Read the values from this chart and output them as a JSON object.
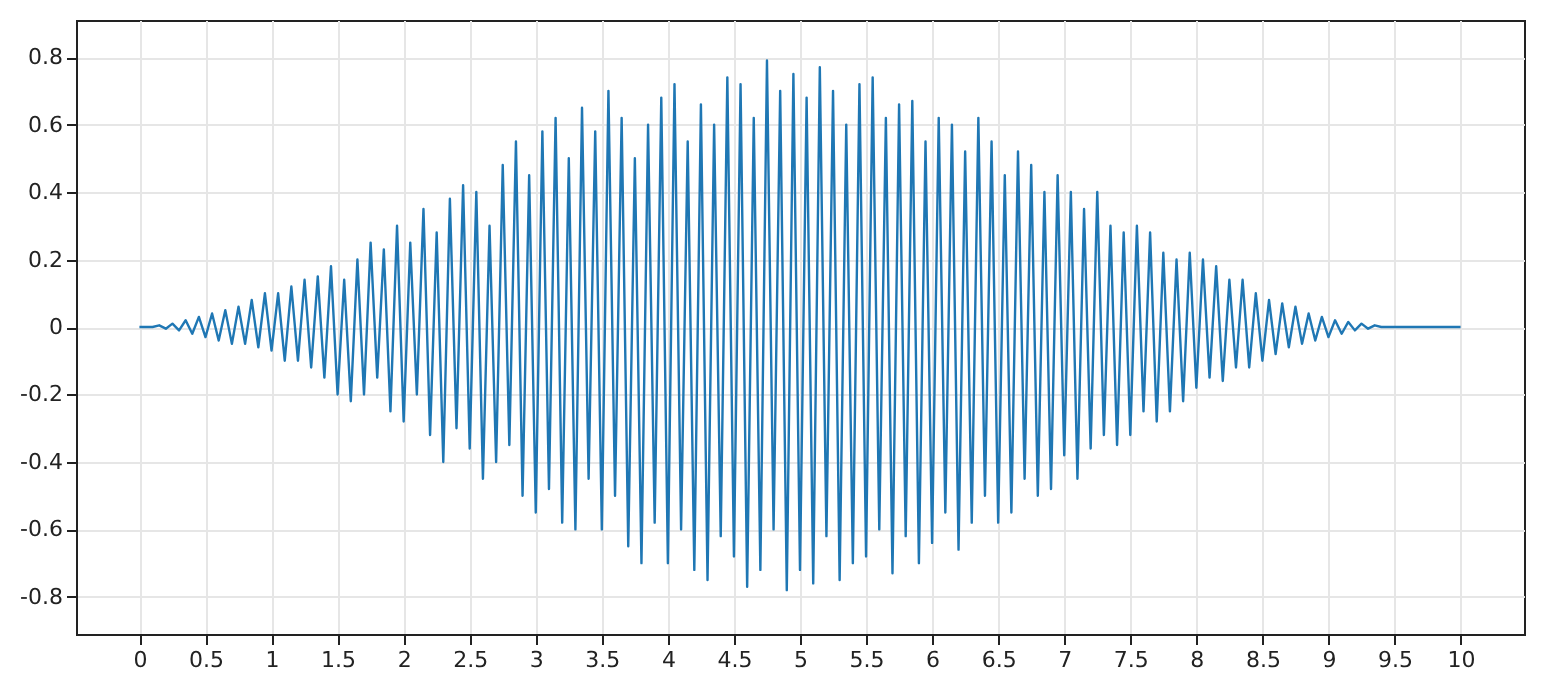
{
  "chart_data": {
    "type": "line",
    "x": [
      0,
      0.05,
      0.1,
      0.15,
      0.2,
      0.25,
      0.3,
      0.35,
      0.4,
      0.45,
      0.5,
      0.55,
      0.6,
      0.65,
      0.7,
      0.75,
      0.8,
      0.85,
      0.9,
      0.95,
      1,
      1.05,
      1.1,
      1.15,
      1.2,
      1.25,
      1.3,
      1.35,
      1.4,
      1.45,
      1.5,
      1.55,
      1.6,
      1.65,
      1.7,
      1.75,
      1.8,
      1.85,
      1.9,
      1.95,
      2,
      2.05,
      2.1,
      2.15,
      2.2,
      2.25,
      2.3,
      2.35,
      2.4,
      2.45,
      2.5,
      2.55,
      2.6,
      2.65,
      2.7,
      2.75,
      2.8,
      2.85,
      2.9,
      2.95,
      3,
      3.05,
      3.1,
      3.15,
      3.2,
      3.25,
      3.3,
      3.35,
      3.4,
      3.45,
      3.5,
      3.55,
      3.6,
      3.65,
      3.7,
      3.75,
      3.8,
      3.85,
      3.9,
      3.95,
      4,
      4.05,
      4.1,
      4.15,
      4.2,
      4.25,
      4.3,
      4.35,
      4.4,
      4.45,
      4.5,
      4.55,
      4.6,
      4.65,
      4.7,
      4.75,
      4.8,
      4.85,
      4.9,
      4.95,
      5,
      5.05,
      5.1,
      5.15,
      5.2,
      5.25,
      5.3,
      5.35,
      5.4,
      5.45,
      5.5,
      5.55,
      5.6,
      5.65,
      5.7,
      5.75,
      5.8,
      5.85,
      5.9,
      5.95,
      6,
      6.05,
      6.1,
      6.15,
      6.2,
      6.25,
      6.3,
      6.35,
      6.4,
      6.45,
      6.5,
      6.55,
      6.6,
      6.65,
      6.7,
      6.75,
      6.8,
      6.85,
      6.9,
      6.95,
      7,
      7.05,
      7.1,
      7.15,
      7.2,
      7.25,
      7.3,
      7.35,
      7.4,
      7.45,
      7.5,
      7.55,
      7.6,
      7.65,
      7.7,
      7.75,
      7.8,
      7.85,
      7.9,
      7.95,
      8,
      8.05,
      8.1,
      8.15,
      8.2,
      8.25,
      8.3,
      8.35,
      8.4,
      8.45,
      8.5,
      8.55,
      8.6,
      8.65,
      8.7,
      8.75,
      8.8,
      8.85,
      8.9,
      8.95,
      9,
      9.05,
      9.1,
      9.15,
      9.2,
      9.25,
      9.3,
      9.35,
      9.4,
      9.45,
      9.5,
      9.55,
      9.6,
      9.65,
      9.7,
      9.75,
      9.8,
      9.85,
      9.9,
      9.95,
      10
    ],
    "series": [
      {
        "color": "#1f77b4",
        "values": [
          0,
          0,
          0,
          0.005,
          -0.005,
          0.01,
          -0.01,
          0.02,
          -0.02,
          0.03,
          -0.03,
          0.04,
          -0.04,
          0.05,
          -0.05,
          0.06,
          -0.05,
          0.08,
          -0.06,
          0.1,
          -0.07,
          0.1,
          -0.1,
          0.12,
          -0.1,
          0.14,
          -0.12,
          0.15,
          -0.15,
          0.18,
          -0.2,
          0.14,
          -0.22,
          0.2,
          -0.2,
          0.25,
          -0.15,
          0.23,
          -0.25,
          0.3,
          -0.28,
          0.25,
          -0.2,
          0.35,
          -0.32,
          0.28,
          -0.4,
          0.38,
          -0.3,
          0.42,
          -0.36,
          0.4,
          -0.45,
          0.3,
          -0.4,
          0.48,
          -0.35,
          0.55,
          -0.5,
          0.45,
          -0.55,
          0.58,
          -0.48,
          0.62,
          -0.58,
          0.5,
          -0.6,
          0.65,
          -0.45,
          0.58,
          -0.6,
          0.7,
          -0.5,
          0.62,
          -0.65,
          0.5,
          -0.7,
          0.6,
          -0.58,
          0.68,
          -0.7,
          0.72,
          -0.6,
          0.55,
          -0.72,
          0.66,
          -0.75,
          0.6,
          -0.62,
          0.74,
          -0.68,
          0.72,
          -0.77,
          0.62,
          -0.72,
          0.79,
          -0.6,
          0.7,
          -0.78,
          0.75,
          -0.72,
          0.68,
          -0.76,
          0.77,
          -0.62,
          0.7,
          -0.75,
          0.6,
          -0.7,
          0.72,
          -0.68,
          0.74,
          -0.6,
          0.62,
          -0.73,
          0.66,
          -0.62,
          0.67,
          -0.7,
          0.55,
          -0.64,
          0.62,
          -0.55,
          0.6,
          -0.66,
          0.52,
          -0.58,
          0.62,
          -0.5,
          0.55,
          -0.58,
          0.45,
          -0.55,
          0.52,
          -0.45,
          0.48,
          -0.5,
          0.4,
          -0.48,
          0.45,
          -0.38,
          0.4,
          -0.45,
          0.35,
          -0.36,
          0.4,
          -0.32,
          0.3,
          -0.35,
          0.28,
          -0.32,
          0.3,
          -0.25,
          0.28,
          -0.28,
          0.22,
          -0.25,
          0.2,
          -0.22,
          0.22,
          -0.18,
          0.2,
          -0.15,
          0.18,
          -0.16,
          0.14,
          -0.12,
          0.14,
          -0.12,
          0.1,
          -0.1,
          0.08,
          -0.08,
          0.07,
          -0.06,
          0.06,
          -0.05,
          0.04,
          -0.04,
          0.03,
          -0.03,
          0.02,
          -0.02,
          0.015,
          -0.01,
          0.01,
          -0.005,
          0.005,
          0,
          0,
          0,
          0,
          0,
          0,
          0,
          0,
          0,
          0,
          0,
          0,
          0
        ]
      }
    ],
    "xlim": [
      -0.48,
      10.48
    ],
    "ylim": [
      -0.91,
      0.91
    ],
    "xticks": [
      0,
      0.5,
      1,
      1.5,
      2,
      2.5,
      3,
      3.5,
      4,
      4.5,
      5,
      5.5,
      6,
      6.5,
      7,
      7.5,
      8,
      8.5,
      9,
      9.5,
      10
    ],
    "yticks": [
      -0.8,
      -0.6,
      -0.4,
      -0.2,
      0,
      0.2,
      0.4,
      0.6,
      0.8
    ],
    "grid": true,
    "marker": "none",
    "line_style": "solid"
  }
}
